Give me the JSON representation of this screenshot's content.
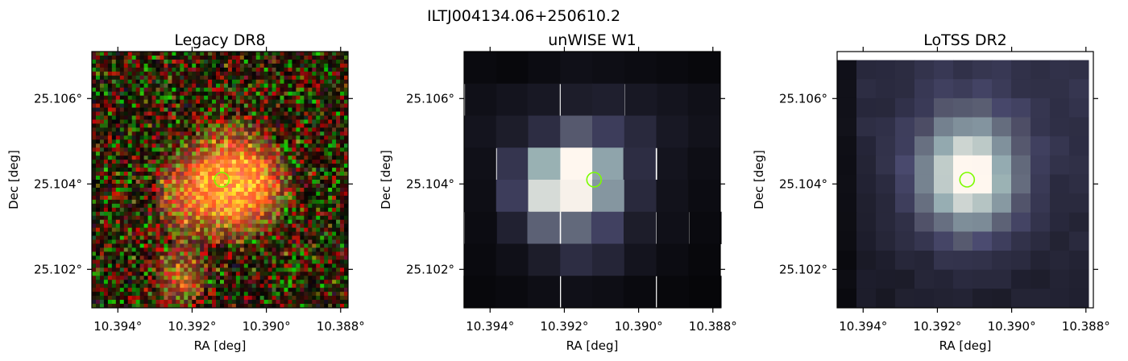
{
  "figure": {
    "suptitle": "ILTJ004134.06+250610.2"
  },
  "chart_data": [
    {
      "type": "heatmap",
      "title": "Legacy DR8",
      "xlabel": "RA [deg]",
      "ylabel": "Dec [deg]",
      "xlim": [
        10.3947,
        10.3878
      ],
      "ylim": [
        25.1011,
        25.1071
      ],
      "xticks": [
        10.394,
        10.392,
        10.39,
        10.388
      ],
      "xtick_labels": [
        "10.394°",
        "10.392°",
        "10.390°",
        "10.388°"
      ],
      "yticks": [
        25.102,
        25.104,
        25.106
      ],
      "ytick_labels": [
        "25.102°",
        "25.104°",
        "25.106°"
      ],
      "colormap": "rgb composite",
      "grid_size": [
        64,
        64
      ],
      "sources": [
        {
          "ra": 10.391,
          "dec": 25.1041,
          "amp": 1.0,
          "sigma": 0.00075
        },
        {
          "ra": 10.3921,
          "dec": 25.1037,
          "amp": 0.55,
          "sigma": 0.0006
        },
        {
          "ra": 10.3904,
          "dec": 25.1039,
          "amp": 0.55,
          "sigma": 0.0006
        },
        {
          "ra": 10.3923,
          "dec": 25.1018,
          "amp": 0.55,
          "sigma": 0.00045
        }
      ],
      "marker": {
        "ra": 10.3912,
        "dec": 25.1041,
        "shape": "circle",
        "color": "#7cfc00"
      }
    },
    {
      "type": "heatmap",
      "title": "unWISE W1",
      "xlabel": "RA [deg]",
      "ylabel": "Dec [deg]",
      "xlim": [
        10.3947,
        10.3878
      ],
      "ylim": [
        25.1011,
        25.1071
      ],
      "xticks": [
        10.394,
        10.392,
        10.39,
        10.388
      ],
      "xtick_labels": [
        "10.394°",
        "10.392°",
        "10.390°",
        "10.388°"
      ],
      "yticks": [
        25.102,
        25.104,
        25.106
      ],
      "ytick_labels": [
        "25.102°",
        "25.104°",
        "25.106°"
      ],
      "colormap": "bone",
      "grid_size": [
        8,
        8
      ],
      "values": [
        [
          0.05,
          0.04,
          0.06,
          0.08,
          0.07,
          0.06,
          0.05,
          0.04
        ],
        [
          0.08,
          0.1,
          0.12,
          0.14,
          0.15,
          0.12,
          0.1,
          0.08
        ],
        [
          0.1,
          0.14,
          0.22,
          0.42,
          0.3,
          0.2,
          0.12,
          0.09
        ],
        [
          0.08,
          0.26,
          0.75,
          1.0,
          0.7,
          0.22,
          0.1,
          0.07
        ],
        [
          0.07,
          0.3,
          0.9,
          0.98,
          0.65,
          0.2,
          0.09,
          0.06
        ],
        [
          0.06,
          0.16,
          0.45,
          0.48,
          0.32,
          0.14,
          0.08,
          0.05
        ],
        [
          0.05,
          0.08,
          0.14,
          0.22,
          0.18,
          0.1,
          0.06,
          0.04
        ],
        [
          0.04,
          0.05,
          0.07,
          0.08,
          0.07,
          0.05,
          0.04,
          0.03
        ]
      ],
      "marker": {
        "ra": 10.3912,
        "dec": 25.1041,
        "shape": "circle",
        "color": "#7cfc00"
      }
    },
    {
      "type": "heatmap",
      "title": "LoTSS DR2",
      "xlabel": "RA [deg]",
      "ylabel": "Dec [deg]",
      "xlim": [
        10.3947,
        10.3878
      ],
      "ylim": [
        25.1011,
        25.1071
      ],
      "xticks": [
        10.394,
        10.392,
        10.39,
        10.388
      ],
      "xtick_labels": [
        "10.394°",
        "10.392°",
        "10.390°",
        "10.388°"
      ],
      "yticks": [
        25.102,
        25.104,
        25.106
      ],
      "ytick_labels": [
        "25.102°",
        "25.104°",
        "25.106°"
      ],
      "colormap": "bone",
      "grid_size": [
        13,
        13
      ],
      "image_dec_range": [
        25.1011,
        25.1069
      ],
      "sources": [
        {
          "ra": 10.3911,
          "dec": 25.1042,
          "amp": 1.0,
          "sigma": 0.00095
        }
      ],
      "background": {
        "base": 0.12,
        "gradient_ra": 0.04,
        "gradient_dec": 0.1
      },
      "marker": {
        "ra": 10.3912,
        "dec": 25.1041,
        "shape": "circle",
        "color": "#7cfc00"
      }
    }
  ]
}
